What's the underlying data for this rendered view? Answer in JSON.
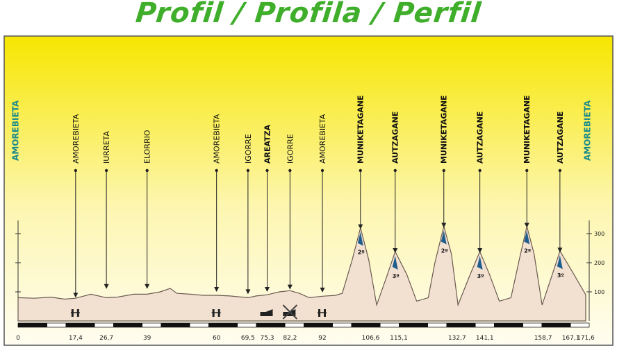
{
  "title": "Profil / Profila / Perfil",
  "colors": {
    "title": "#3fae2a",
    "panel_top": "#f7e600",
    "panel_bottom": "#fffbe6",
    "terrain_fill": "#f2e0d0",
    "terrain_stroke": "#6a5a50",
    "town_teal": "#1a8a8a",
    "climb_blue": "#1f5d8c"
  },
  "chart_data": {
    "type": "area",
    "title": "Profil / Profila / Perfil",
    "xlabel": "",
    "ylabel": "",
    "xlim": [
      0,
      171.6
    ],
    "ylim": [
      0,
      350
    ],
    "y_ticks": [
      100,
      200,
      300
    ],
    "x_ticks": [
      "0",
      "17,4",
      "26,7",
      "39",
      "60",
      "69,5",
      "75,3",
      "82,2",
      "92",
      "106,6",
      "115,1",
      "132,7",
      "141,1",
      "158,7",
      "167,1",
      "171,6"
    ],
    "profile": [
      {
        "km": 0,
        "alt": 80
      },
      {
        "km": 5,
        "alt": 78
      },
      {
        "km": 10,
        "alt": 82
      },
      {
        "km": 14,
        "alt": 75
      },
      {
        "km": 17.4,
        "alt": 78
      },
      {
        "km": 22,
        "alt": 92
      },
      {
        "km": 26.7,
        "alt": 80
      },
      {
        "km": 30,
        "alt": 82
      },
      {
        "km": 35,
        "alt": 92
      },
      {
        "km": 39,
        "alt": 92
      },
      {
        "km": 43,
        "alt": 100
      },
      {
        "km": 46,
        "alt": 112
      },
      {
        "km": 48,
        "alt": 95
      },
      {
        "km": 52,
        "alt": 92
      },
      {
        "km": 56,
        "alt": 88
      },
      {
        "km": 60,
        "alt": 88
      },
      {
        "km": 64,
        "alt": 86
      },
      {
        "km": 69.5,
        "alt": 80
      },
      {
        "km": 72,
        "alt": 86
      },
      {
        "km": 75.3,
        "alt": 90
      },
      {
        "km": 79,
        "alt": 100
      },
      {
        "km": 82.2,
        "alt": 104
      },
      {
        "km": 85,
        "alt": 95
      },
      {
        "km": 88,
        "alt": 80
      },
      {
        "km": 92,
        "alt": 85
      },
      {
        "km": 96,
        "alt": 88
      },
      {
        "km": 98,
        "alt": 95
      },
      {
        "km": 101,
        "alt": 210
      },
      {
        "km": 103.5,
        "alt": 320
      },
      {
        "km": 106,
        "alt": 210
      },
      {
        "km": 108.4,
        "alt": 55
      },
      {
        "km": 111.5,
        "alt": 155
      },
      {
        "km": 114,
        "alt": 238
      },
      {
        "km": 117.5,
        "alt": 160
      },
      {
        "km": 120.5,
        "alt": 68
      },
      {
        "km": 124,
        "alt": 80
      },
      {
        "km": 126,
        "alt": 200
      },
      {
        "km": 128.7,
        "alt": 325
      },
      {
        "km": 131,
        "alt": 230
      },
      {
        "km": 133,
        "alt": 55
      },
      {
        "km": 136.5,
        "alt": 155
      },
      {
        "km": 139.6,
        "alt": 238
      },
      {
        "km": 142.5,
        "alt": 160
      },
      {
        "km": 145.5,
        "alt": 68
      },
      {
        "km": 149,
        "alt": 80
      },
      {
        "km": 151.5,
        "alt": 210
      },
      {
        "km": 153.8,
        "alt": 325
      },
      {
        "km": 156,
        "alt": 230
      },
      {
        "km": 158.4,
        "alt": 55
      },
      {
        "km": 161.5,
        "alt": 160
      },
      {
        "km": 163.8,
        "alt": 240
      },
      {
        "km": 167,
        "alt": 180
      },
      {
        "km": 171.6,
        "alt": 90
      }
    ],
    "start_label": "AMOREBIETA",
    "finish_label": "AMOREBIETA",
    "waypoints": [
      {
        "label": "AMOREBIETA",
        "km": 17.4,
        "bold": false,
        "icon": "level-crossing",
        "arrow_alt": 80
      },
      {
        "label": "IURRETA",
        "km": 26.7,
        "bold": false,
        "arrow_alt": 110
      },
      {
        "label": "ELORRIO",
        "km": 39,
        "bold": false,
        "arrow_alt": 110
      },
      {
        "label": "AMOREBIETA",
        "km": 60,
        "bold": false,
        "icon": "level-crossing",
        "arrow_alt": 100
      },
      {
        "label": "IGORRE",
        "km": 69.5,
        "bold": false,
        "arrow_alt": 92
      },
      {
        "label": "AREATZA",
        "km": 75.3,
        "bold": true,
        "icon": "sprint",
        "arrow_alt": 100
      },
      {
        "label": "IGORRE",
        "km": 82.2,
        "bold": false,
        "icon": "sprint-crossed",
        "arrow_alt": 108
      },
      {
        "label": "AMOREBIETA",
        "km": 92,
        "bold": false,
        "icon": "level-crossing",
        "arrow_alt": 98
      }
    ],
    "climbs": [
      {
        "label": "MUNIKETAGANE",
        "km": 103.5,
        "category": "2º",
        "summit_alt": 320
      },
      {
        "label": "AUTZAGANE",
        "km": 114,
        "category": "3º",
        "summit_alt": 238
      },
      {
        "label": "MUNIKETAGANE",
        "km": 128.7,
        "category": "2º",
        "summit_alt": 325
      },
      {
        "label": "AUTZAGANE",
        "km": 139.6,
        "category": "3º",
        "summit_alt": 238
      },
      {
        "label": "MUNIKETAGANE",
        "km": 153.8,
        "category": "2º",
        "summit_alt": 325
      },
      {
        "label": "AUTZAGANE",
        "km": 163.8,
        "category": "3º",
        "summit_alt": 240
      }
    ],
    "grid": false,
    "legend": "none"
  }
}
